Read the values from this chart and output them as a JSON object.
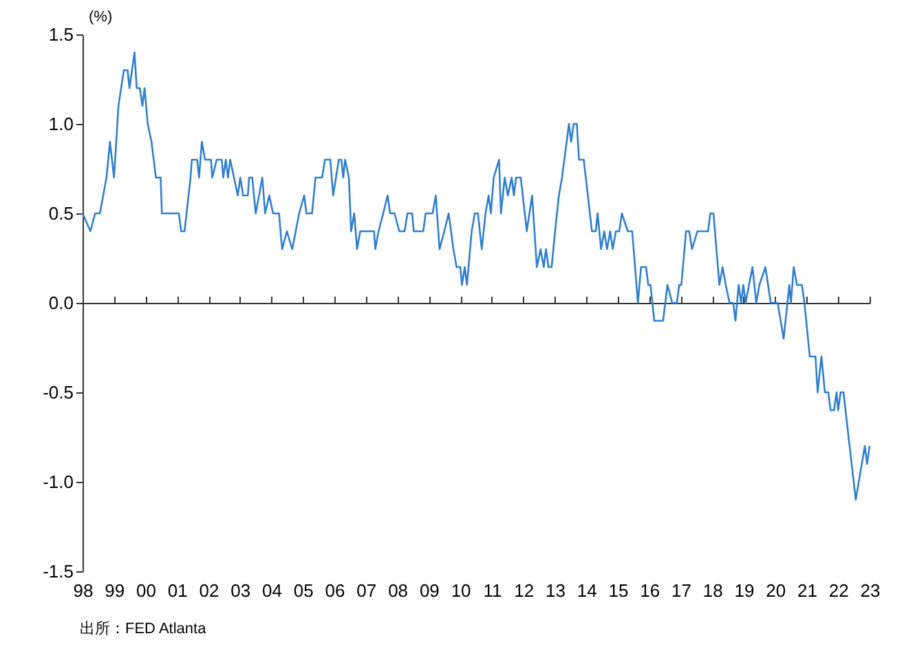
{
  "chart_data": {
    "type": "line",
    "ylabel": "(%)",
    "annotations": [
      "出所：FED Atlanta"
    ],
    "xlim": [
      1998,
      2023
    ],
    "ylim": [
      -1.5,
      1.5
    ],
    "xticks": [
      {
        "value": 1998,
        "label": "98"
      },
      {
        "value": 1999,
        "label": "99"
      },
      {
        "value": 2000,
        "label": "00"
      },
      {
        "value": 2001,
        "label": "01"
      },
      {
        "value": 2002,
        "label": "02"
      },
      {
        "value": 2003,
        "label": "03"
      },
      {
        "value": 2004,
        "label": "04"
      },
      {
        "value": 2005,
        "label": "05"
      },
      {
        "value": 2006,
        "label": "06"
      },
      {
        "value": 2007,
        "label": "07"
      },
      {
        "value": 2008,
        "label": "08"
      },
      {
        "value": 2009,
        "label": "09"
      },
      {
        "value": 2010,
        "label": "10"
      },
      {
        "value": 2011,
        "label": "11"
      },
      {
        "value": 2012,
        "label": "12"
      },
      {
        "value": 2013,
        "label": "13"
      },
      {
        "value": 2014,
        "label": "14"
      },
      {
        "value": 2015,
        "label": "15"
      },
      {
        "value": 2016,
        "label": "16"
      },
      {
        "value": 2017,
        "label": "17"
      },
      {
        "value": 2018,
        "label": "18"
      },
      {
        "value": 2019,
        "label": "19"
      },
      {
        "value": 2020,
        "label": "20"
      },
      {
        "value": 2021,
        "label": "21"
      },
      {
        "value": 2022,
        "label": "22"
      },
      {
        "value": 2023,
        "label": "23"
      }
    ],
    "yticks": [
      {
        "value": -1.5,
        "label": "-1.5"
      },
      {
        "value": -1,
        "label": "-1.0"
      },
      {
        "value": -0.5,
        "label": "-0.5"
      },
      {
        "value": 0,
        "label": "0.0"
      },
      {
        "value": 0.5,
        "label": "0.5"
      },
      {
        "value": 1,
        "label": "1.0"
      },
      {
        "value": 1.5,
        "label": "1.5"
      }
    ],
    "marker": "none",
    "line_style": "solid",
    "x": [
      1998.0,
      1998.25,
      1998.4,
      1998.55,
      1998.76,
      1998.87,
      1999.0,
      1999.14,
      1999.31,
      1999.43,
      1999.49,
      1999.65,
      1999.72,
      1999.82,
      1999.9,
      1999.97,
      2000.07,
      2000.19,
      2000.33,
      2000.48,
      2000.52,
      2001.06,
      2001.13,
      2001.24,
      2001.43,
      2001.47,
      2001.64,
      2001.7,
      2001.79,
      2001.89,
      2002.08,
      2002.12,
      2002.26,
      2002.42,
      2002.47,
      2002.55,
      2002.62,
      2002.69,
      2002.81,
      2002.93,
      2003.01,
      2003.1,
      2003.25,
      2003.29,
      2003.39,
      2003.5,
      2003.71,
      2003.8,
      2003.93,
      2004.05,
      2004.24,
      2004.34,
      2004.49,
      2004.66,
      2004.88,
      2005.04,
      2005.11,
      2005.29,
      2005.4,
      2005.61,
      2005.7,
      2005.87,
      2005.96,
      2006.14,
      2006.22,
      2006.28,
      2006.34,
      2006.46,
      2006.53,
      2006.63,
      2006.72,
      2006.82,
      2007.26,
      2007.3,
      2007.4,
      2007.55,
      2007.69,
      2007.77,
      2007.91,
      2008.06,
      2008.23,
      2008.32,
      2008.47,
      2008.52,
      2008.82,
      2008.9,
      2009.12,
      2009.22,
      2009.34,
      2009.49,
      2009.63,
      2009.78,
      2009.88,
      2010.0,
      2010.05,
      2010.14,
      2010.21,
      2010.36,
      2010.46,
      2010.56,
      2010.68,
      2010.8,
      2010.9,
      2010.97,
      2011.06,
      2011.23,
      2011.29,
      2011.41,
      2011.51,
      2011.63,
      2011.7,
      2011.77,
      2011.92,
      2012.11,
      2012.28,
      2012.43,
      2012.55,
      2012.65,
      2012.72,
      2012.8,
      2012.9,
      2013.01,
      2013.13,
      2013.23,
      2013.45,
      2013.52,
      2013.6,
      2013.7,
      2013.77,
      2013.92,
      2014.18,
      2014.3,
      2014.36,
      2014.47,
      2014.57,
      2014.66,
      2014.76,
      2014.84,
      2014.94,
      2015.05,
      2015.13,
      2015.32,
      2015.46,
      2015.64,
      2015.74,
      2015.9,
      2015.97,
      2016.04,
      2016.16,
      2016.44,
      2016.58,
      2016.73,
      2016.88,
      2016.95,
      2017.02,
      2017.17,
      2017.27,
      2017.36,
      2017.53,
      2017.87,
      2017.94,
      2018.04,
      2018.23,
      2018.33,
      2018.43,
      2018.55,
      2018.67,
      2018.74,
      2018.84,
      2018.92,
      2018.99,
      2019.06,
      2019.28,
      2019.4,
      2019.5,
      2019.69,
      2019.86,
      2020.08,
      2020.27,
      2020.45,
      2020.5,
      2020.59,
      2020.69,
      2020.85,
      2020.93,
      2021.1,
      2021.28,
      2021.35,
      2021.47,
      2021.58,
      2021.69,
      2021.76,
      2021.87,
      2021.95,
      2022.0,
      2022.08,
      2022.17,
      2022.56,
      2022.85,
      2022.92,
      2023.0
    ],
    "series": [
      {
        "color": "#2f7fce",
        "values": [
          0.5,
          0.4,
          0.5,
          0.5,
          0.7,
          0.9,
          0.7,
          1.1,
          1.3,
          1.3,
          1.2,
          1.4,
          1.2,
          1.2,
          1.1,
          1.2,
          1.0,
          0.9,
          0.7,
          0.7,
          0.5,
          0.5,
          0.4,
          0.4,
          0.7,
          0.8,
          0.8,
          0.7,
          0.9,
          0.8,
          0.8,
          0.7,
          0.8,
          0.8,
          0.7,
          0.8,
          0.7,
          0.8,
          0.7,
          0.6,
          0.7,
          0.6,
          0.6,
          0.7,
          0.7,
          0.5,
          0.7,
          0.5,
          0.6,
          0.5,
          0.5,
          0.3,
          0.4,
          0.3,
          0.5,
          0.6,
          0.5,
          0.5,
          0.7,
          0.7,
          0.8,
          0.8,
          0.6,
          0.8,
          0.8,
          0.7,
          0.8,
          0.7,
          0.4,
          0.5,
          0.3,
          0.4,
          0.4,
          0.3,
          0.4,
          0.5,
          0.6,
          0.5,
          0.5,
          0.4,
          0.4,
          0.5,
          0.5,
          0.4,
          0.4,
          0.5,
          0.5,
          0.6,
          0.3,
          0.4,
          0.5,
          0.3,
          0.2,
          0.2,
          0.1,
          0.2,
          0.1,
          0.4,
          0.5,
          0.5,
          0.3,
          0.5,
          0.6,
          0.5,
          0.7,
          0.8,
          0.5,
          0.7,
          0.6,
          0.7,
          0.6,
          0.7,
          0.7,
          0.4,
          0.6,
          0.2,
          0.3,
          0.2,
          0.3,
          0.2,
          0.2,
          0.4,
          0.6,
          0.7,
          1.0,
          0.9,
          1.0,
          1.0,
          0.8,
          0.8,
          0.4,
          0.4,
          0.5,
          0.3,
          0.4,
          0.3,
          0.4,
          0.3,
          0.4,
          0.4,
          0.5,
          0.4,
          0.4,
          0.0,
          0.2,
          0.2,
          0.1,
          0.1,
          -0.1,
          -0.1,
          0.1,
          0.0,
          0.0,
          0.1,
          0.1,
          0.4,
          0.4,
          0.3,
          0.4,
          0.4,
          0.5,
          0.5,
          0.1,
          0.2,
          0.1,
          0.0,
          0.0,
          -0.1,
          0.1,
          0.0,
          0.1,
          0.0,
          0.2,
          0.0,
          0.1,
          0.2,
          0.0,
          0.0,
          -0.2,
          0.1,
          0.0,
          0.2,
          0.1,
          0.1,
          0.0,
          -0.3,
          -0.3,
          -0.5,
          -0.3,
          -0.5,
          -0.5,
          -0.6,
          -0.6,
          -0.5,
          -0.6,
          -0.5,
          -0.5,
          -1.1,
          -0.8,
          -0.9,
          -0.8
        ]
      }
    ]
  }
}
